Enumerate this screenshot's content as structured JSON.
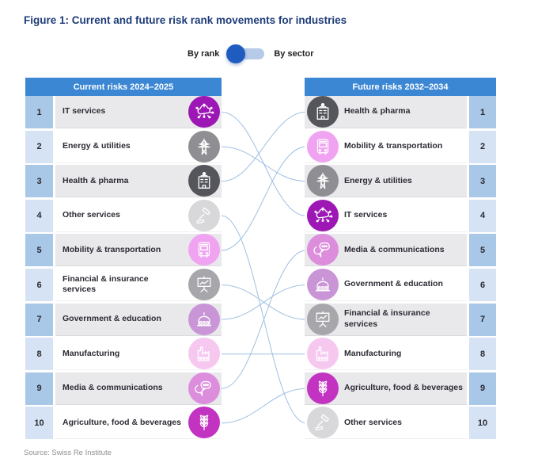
{
  "title": "Figure 1: Current and future risk rank movements for industries",
  "toggle": {
    "left_label": "By rank",
    "right_label": "By sector",
    "selected": "By rank",
    "knob_position": "left"
  },
  "left_table": {
    "header": "Current risks 2024–2025"
  },
  "right_table": {
    "header": "Future risks 2032–2034"
  },
  "sectors": [
    {
      "name": "IT services",
      "icon": "cloud-network-icon",
      "circle_color": "#9d17b5",
      "current_rank": 1,
      "future_rank": 4
    },
    {
      "name": "Energy & utilities",
      "icon": "power-tower-icon",
      "circle_color": "#8e8e93",
      "current_rank": 2,
      "future_rank": 3
    },
    {
      "name": "Health & pharma",
      "icon": "hospital-icon",
      "circle_color": "#55555c",
      "current_rank": 3,
      "future_rank": 1
    },
    {
      "name": "Other services",
      "icon": "gavel-icon",
      "circle_color": "#d8d8db",
      "current_rank": 4,
      "future_rank": 10
    },
    {
      "name": "Mobility & transportation",
      "icon": "bus-icon",
      "circle_color": "#f0a3f0",
      "current_rank": 5,
      "future_rank": 2
    },
    {
      "name": "Financial & insurance services",
      "icon": "presentation-chart-icon",
      "circle_color": "#a6a6ab",
      "current_rank": 6,
      "future_rank": 7
    },
    {
      "name": "Government & education",
      "icon": "government-building-icon",
      "circle_color": "#c995d6",
      "current_rank": 7,
      "future_rank": 6
    },
    {
      "name": "Manufacturing",
      "icon": "factory-icon",
      "circle_color": "#f6c8f0",
      "current_rank": 8,
      "future_rank": 8
    },
    {
      "name": "Media & communications",
      "icon": "speech-bubbles-icon",
      "circle_color": "#dc8edc",
      "current_rank": 9,
      "future_rank": 5
    },
    {
      "name": "Agriculture, food & beverages",
      "icon": "wheat-icon",
      "circle_color": "#c233c2",
      "current_rank": 10,
      "future_rank": 9
    }
  ],
  "source": "Source: Swiss Re Institute",
  "colors": {
    "header_bg": "#3c87d3",
    "number_cell_odd": "#a9c7e7",
    "number_cell_even": "#d5e3f4",
    "row_odd": "#e9e9ec",
    "row_even": "#ffffff",
    "connector_line": "#9fc0e2",
    "toggle_knob": "#1f5cc0",
    "toggle_track": "#b6cbe7",
    "title_color": "#1d3c78"
  },
  "chart_data": {
    "type": "table",
    "subtype": "rank-slope-chart",
    "title": "Figure 1: Current and future risk rank movements for industries",
    "columns": [
      "Current risks 2024–2025",
      "Future risks 2032–2034"
    ],
    "categories": [
      "IT services",
      "Energy & utilities",
      "Health & pharma",
      "Other services",
      "Mobility & transportation",
      "Financial & insurance services",
      "Government & education",
      "Manufacturing",
      "Media & communications",
      "Agriculture, food & beverages"
    ],
    "series": [
      {
        "name": "Current rank 2024–2025",
        "values": [
          1,
          2,
          3,
          4,
          5,
          6,
          7,
          8,
          9,
          10
        ]
      },
      {
        "name": "Future rank 2032–2034",
        "values": [
          4,
          3,
          1,
          10,
          2,
          7,
          6,
          8,
          5,
          9
        ]
      }
    ],
    "current_order_top_to_bottom": [
      "IT services",
      "Energy & utilities",
      "Health & pharma",
      "Other services",
      "Mobility & transportation",
      "Financial & insurance services",
      "Government & education",
      "Manufacturing",
      "Media & communications",
      "Agriculture, food & beverages"
    ],
    "future_order_top_to_bottom": [
      "Health & pharma",
      "Mobility & transportation",
      "Energy & utilities",
      "IT services",
      "Media & communications",
      "Government & education",
      "Financial & insurance services",
      "Manufacturing",
      "Agriculture, food & beverages",
      "Other services"
    ],
    "annotations": [
      "By rank",
      "By sector",
      "Source: Swiss Re Institute"
    ]
  }
}
